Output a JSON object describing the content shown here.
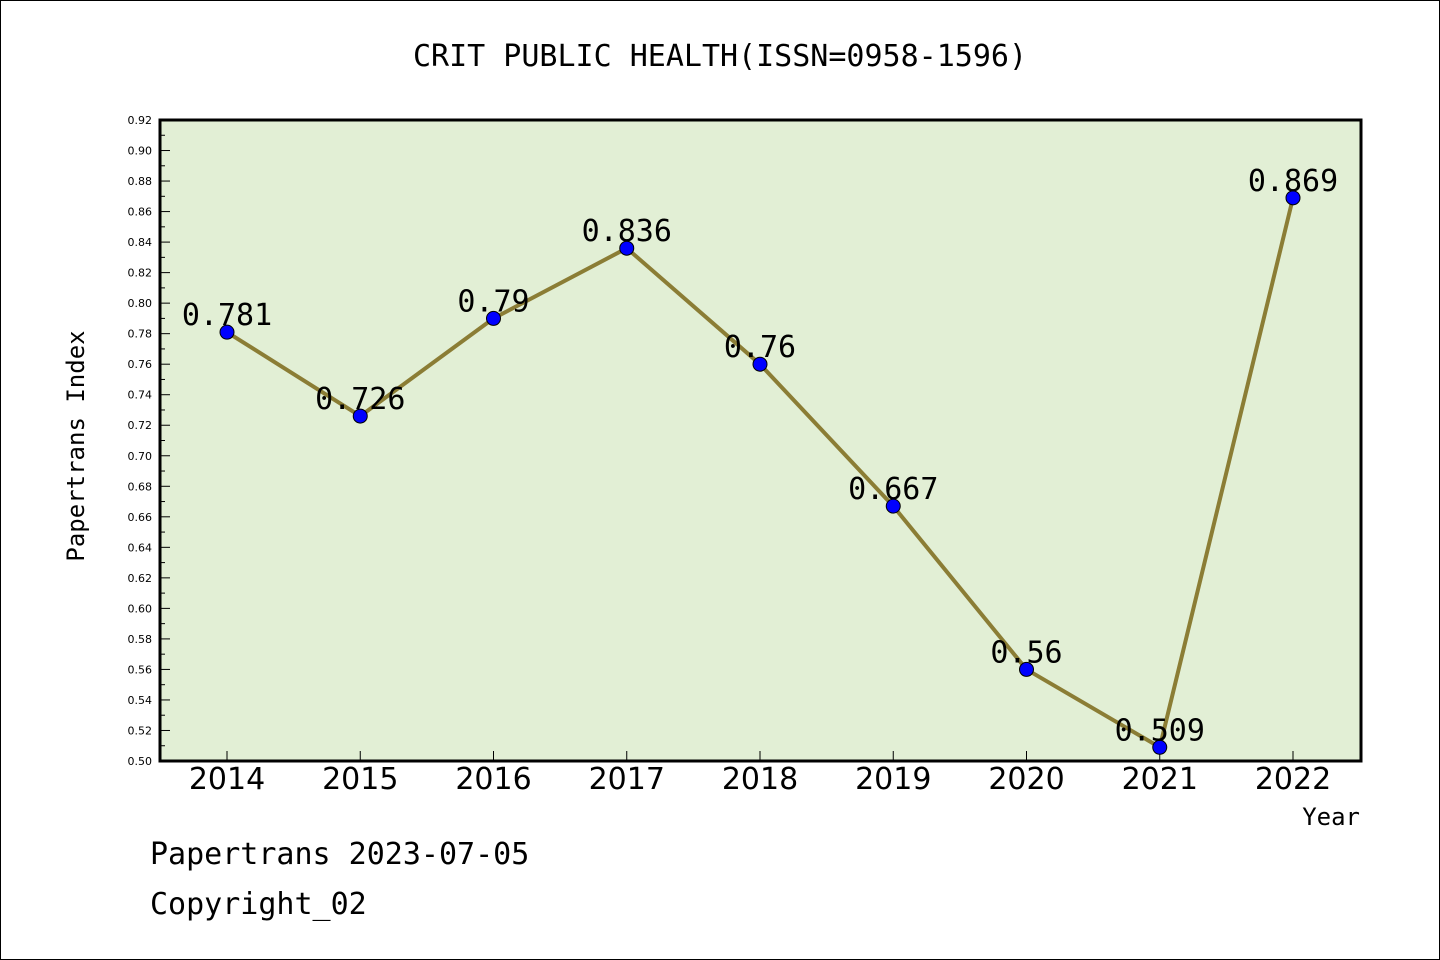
{
  "chart_data": {
    "type": "line",
    "title": "CRIT PUBLIC HEALTH(ISSN=0958-1596)",
    "xlabel": "Year",
    "ylabel": "Papertrans Index",
    "categories": [
      "2014",
      "2015",
      "2016",
      "2017",
      "2018",
      "2019",
      "2020",
      "2021",
      "2022"
    ],
    "values": [
      0.781,
      0.726,
      0.79,
      0.836,
      0.76,
      0.667,
      0.56,
      0.509,
      0.869
    ],
    "point_labels": [
      "0.781",
      "0.726",
      "0.79",
      "0.836",
      "0.76",
      "0.667",
      "0.56",
      "0.509",
      "0.869"
    ],
    "ylim": [
      0.5,
      0.92
    ],
    "yticks": [
      "0.50",
      "0.52",
      "0.54",
      "0.56",
      "0.58",
      "0.60",
      "0.62",
      "0.64",
      "0.66",
      "0.68",
      "0.70",
      "0.72",
      "0.74",
      "0.76",
      "0.78",
      "0.80",
      "0.82",
      "0.84",
      "0.86",
      "0.88",
      "0.90",
      "0.92"
    ],
    "grid": false,
    "colors": {
      "plot_background": "#e2efd5",
      "line": "#8b7d35",
      "marker": "#0000ff"
    }
  },
  "footer": {
    "line1": "Papertrans 2023-07-05",
    "line2": "Copyright_02"
  }
}
